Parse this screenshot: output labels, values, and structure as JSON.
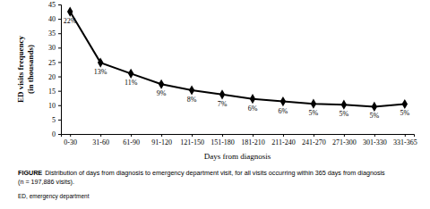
{
  "chart_data": {
    "type": "line",
    "x_label": "Days from diagnosis",
    "y_label": "ED visits frequency (in thousands)",
    "annotations": [
      "FIGURE",
      "Distribution of days from diagnosis to emergency department visit, for all visits occurring within 365 days from diagnosis",
      "(n = 197,886 visits).",
      "ED, emergency department"
    ],
    "categories": [
      "0-30",
      "31-60",
      "61-90",
      "91-120",
      "121-150",
      "151-180",
      "181-210",
      "211-240",
      "241-270",
      "271-300",
      "301-330",
      "331-365"
    ],
    "values": [
      42.5,
      24.8,
      21.0,
      17.3,
      15.2,
      13.7,
      12.2,
      11.3,
      10.5,
      10.2,
      9.5,
      10.4
    ],
    "point_labels": [
      "22%",
      "13%",
      "11%",
      "9%",
      "8%",
      "7%",
      "6%",
      "6%",
      "5%",
      "5%",
      "5%",
      "5%"
    ],
    "color": "#000000",
    "marker": "diamond",
    "ylim": [
      0,
      45
    ],
    "yticks": [
      0,
      5,
      10,
      15,
      20,
      25,
      30,
      35,
      40,
      45
    ],
    "grid": false
  }
}
